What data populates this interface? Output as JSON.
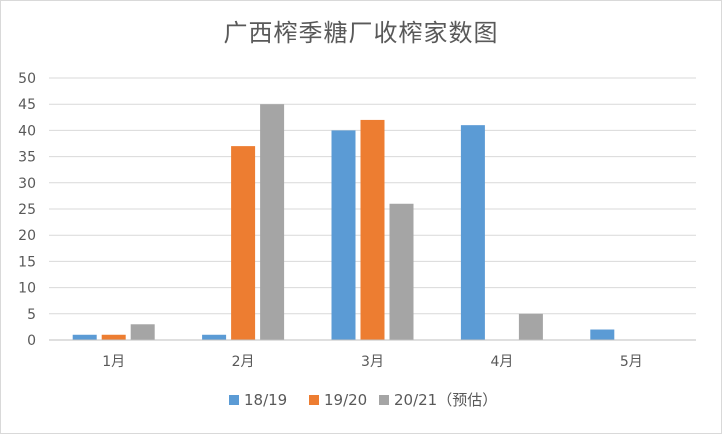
{
  "chart_data": {
    "type": "bar",
    "title": "广西榨季糖厂收榨家数图",
    "xlabel": "",
    "ylabel": "",
    "categories": [
      "1月",
      "2月",
      "3月",
      "4月",
      "5月"
    ],
    "ylim": [
      0,
      50
    ],
    "yticks": [
      0,
      5,
      10,
      15,
      20,
      25,
      30,
      35,
      40,
      45,
      50
    ],
    "grid": true,
    "legend_position": "bottom",
    "series": [
      {
        "name": "18/19",
        "color": "#5b9bd5",
        "values": [
          1,
          1,
          40,
          41,
          2
        ]
      },
      {
        "name": "19/20",
        "color": "#ed7d31",
        "values": [
          1,
          37,
          42,
          null,
          null
        ]
      },
      {
        "name": "20/21（预估）",
        "color": "#a5a5a5",
        "values": [
          3,
          45,
          26,
          5,
          null
        ]
      }
    ]
  }
}
